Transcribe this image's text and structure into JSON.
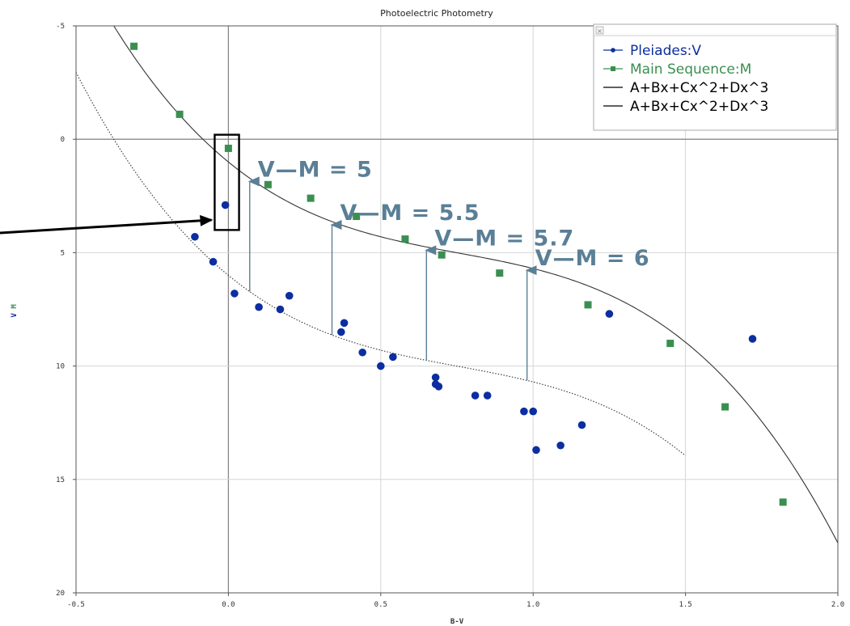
{
  "colors": {
    "pleiades": "#0d2ea0",
    "main_sequence": "#3a8f50",
    "curve": "#333333",
    "annotation": "#5a7f96",
    "grid": "#d6d6d6",
    "zero_line": "#888888",
    "pointer": "#000000"
  },
  "chart_data": {
    "type": "scatter",
    "title": "Photoelectric Photometry",
    "xlabel": "B-V",
    "ylabel_parts": [
      "V",
      "M"
    ],
    "xlim": [
      -0.5,
      2.0
    ],
    "ylim": [
      -5,
      20
    ],
    "y_inverted": true,
    "grid": true,
    "legend_position": "top-right",
    "x_ticks": [
      {
        "value": -0.5,
        "label": "-0.5"
      },
      {
        "value": 0.0,
        "label": "0.0"
      },
      {
        "value": 0.5,
        "label": "0.5"
      },
      {
        "value": 1.0,
        "label": "1.0"
      },
      {
        "value": 1.5,
        "label": "1.5"
      },
      {
        "value": 2.0,
        "label": "2.0"
      }
    ],
    "y_ticks": [
      {
        "value": -5,
        "label": "-5"
      },
      {
        "value": 0,
        "label": "0"
      },
      {
        "value": 5,
        "label": "5"
      },
      {
        "value": 10,
        "label": "10"
      },
      {
        "value": 15,
        "label": "15"
      },
      {
        "value": 20,
        "label": "20"
      }
    ],
    "series": [
      {
        "name": "Pleiades:V",
        "kind": "points",
        "marker": "circle",
        "color": "#0d2ea0",
        "points": [
          [
            -0.01,
            2.9
          ],
          [
            -0.11,
            4.3
          ],
          [
            -0.05,
            5.4
          ],
          [
            0.02,
            6.8
          ],
          [
            0.1,
            7.4
          ],
          [
            0.17,
            7.5
          ],
          [
            0.2,
            6.9
          ],
          [
            0.37,
            8.5
          ],
          [
            0.38,
            8.1
          ],
          [
            0.44,
            9.4
          ],
          [
            0.5,
            10.0
          ],
          [
            0.54,
            9.6
          ],
          [
            0.68,
            10.5
          ],
          [
            0.68,
            10.8
          ],
          [
            0.69,
            10.9
          ],
          [
            0.81,
            11.3
          ],
          [
            0.85,
            11.3
          ],
          [
            0.97,
            12.0
          ],
          [
            1.0,
            12.0
          ],
          [
            1.01,
            13.7
          ],
          [
            1.09,
            13.5
          ],
          [
            1.16,
            12.6
          ],
          [
            1.25,
            7.7
          ],
          [
            1.72,
            8.8
          ]
        ]
      },
      {
        "name": "Main Sequence:M",
        "kind": "points",
        "marker": "square",
        "color": "#3a8f50",
        "points": [
          [
            -0.31,
            -4.1
          ],
          [
            -0.16,
            -1.1
          ],
          [
            0.0,
            0.4
          ],
          [
            0.13,
            2.0
          ],
          [
            0.27,
            2.6
          ],
          [
            0.42,
            3.4
          ],
          [
            0.58,
            4.4
          ],
          [
            0.7,
            5.1
          ],
          [
            0.89,
            5.9
          ],
          [
            1.18,
            7.3
          ],
          [
            1.45,
            9.0
          ],
          [
            1.63,
            11.8
          ],
          [
            1.82,
            16.0
          ]
        ]
      },
      {
        "name": "A+Bx+Cx^2+Dx^3",
        "kind": "fit",
        "style": "dotted",
        "coefficients": [
          6.0,
          11.0,
          -11.3,
          5.0
        ],
        "domain": [
          -0.5,
          1.5
        ]
      },
      {
        "name": "A+Bx+Cx^2+Dx^3",
        "kind": "fit",
        "style": "solid",
        "coefficients": [
          1.0,
          11.0,
          -11.3,
          5.0
        ],
        "domain": [
          -0.5,
          2.0
        ]
      }
    ],
    "annotations": [
      {
        "text": "V—M = 5",
        "arrow_x": 0.07
      },
      {
        "text": "V—M = 5.5",
        "arrow_x": 0.34
      },
      {
        "text": "V—M = 5.7",
        "arrow_x": 0.65
      },
      {
        "text": "V—M = 6",
        "arrow_x": 0.98
      }
    ]
  }
}
